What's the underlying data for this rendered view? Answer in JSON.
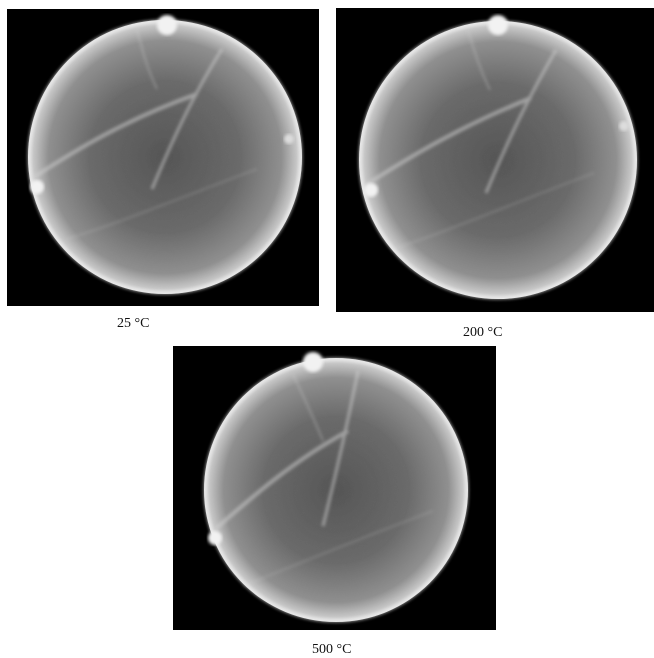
{
  "figure": {
    "panels": [
      {
        "caption": "25 °C"
      },
      {
        "caption": "200 °C"
      },
      {
        "caption": "500 °C"
      }
    ]
  }
}
